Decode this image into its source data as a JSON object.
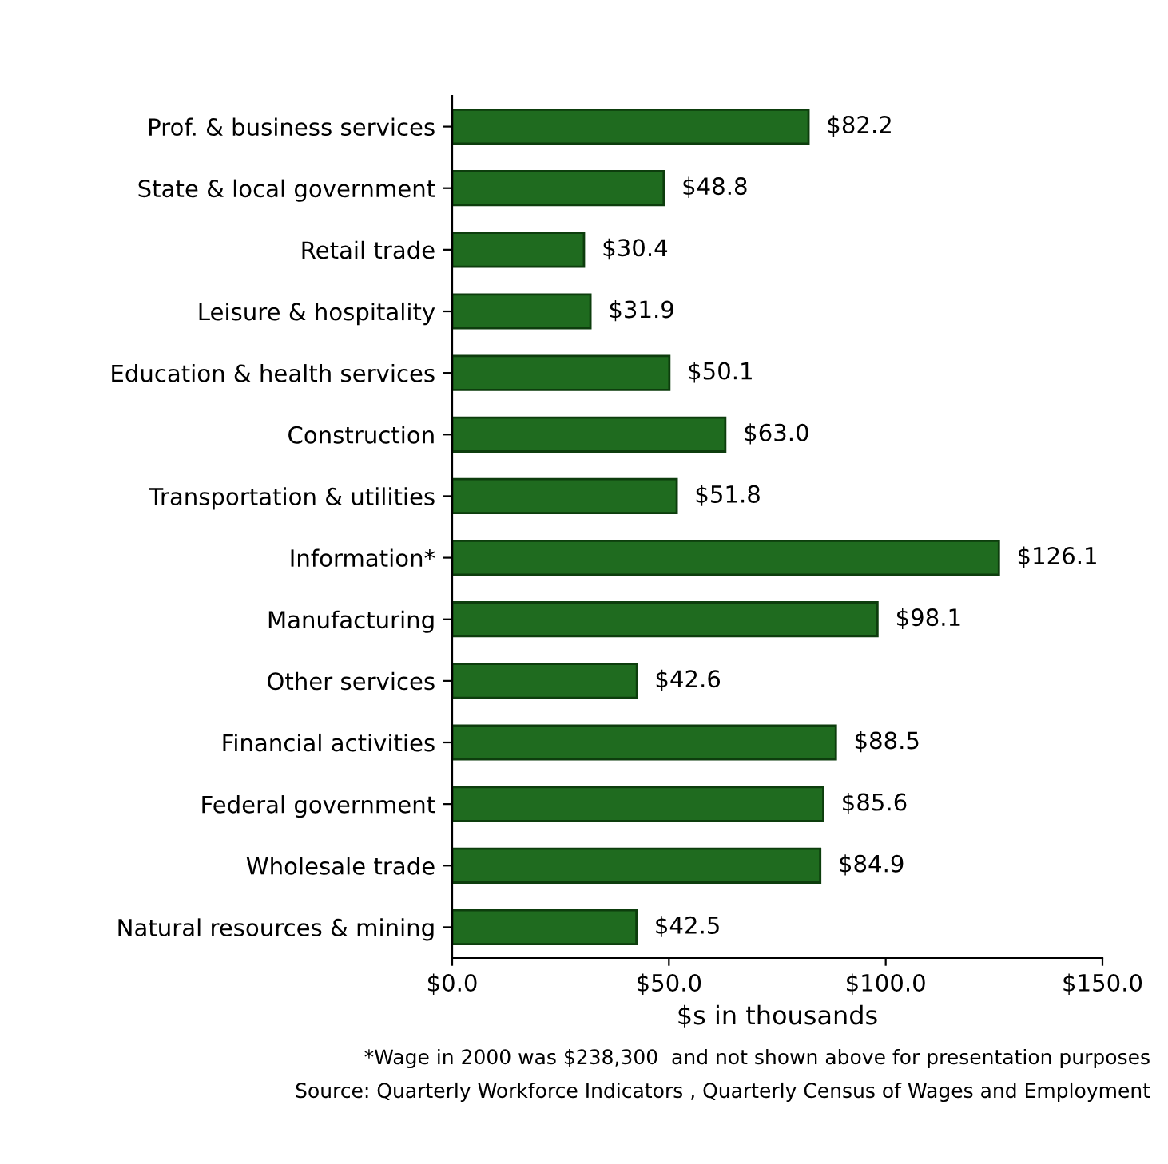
{
  "chart_data": {
    "type": "bar",
    "orientation": "horizontal",
    "xlabel": "$s in thousands",
    "categories": [
      "Prof. & business services",
      "State & local government",
      "Retail trade",
      "Leisure & hospitality",
      "Education & health services",
      "Construction",
      "Transportation & utilities",
      "Information*",
      "Manufacturing",
      "Other services",
      "Financial activities",
      "Federal government",
      "Wholesale trade",
      "Natural resources & mining"
    ],
    "values": [
      82.2,
      48.8,
      30.4,
      31.9,
      50.1,
      63.0,
      51.8,
      126.1,
      98.1,
      42.6,
      88.5,
      85.6,
      84.9,
      42.5
    ],
    "value_labels": [
      "$82.2",
      "$48.8",
      "$30.4",
      "$31.9",
      "$50.1",
      "$63.0",
      "$51.8",
      "$126.1",
      "$98.1",
      "$42.6",
      "$88.5",
      "$85.6",
      "$84.9",
      "$42.5"
    ],
    "color": "#1f6b1f",
    "xlim": [
      0,
      150
    ],
    "xticks": [
      {
        "value": 0,
        "label": "$0.0"
      },
      {
        "value": 50,
        "label": "$50.0"
      },
      {
        "value": 100,
        "label": "$100.0"
      },
      {
        "value": 150,
        "label": "$150.0"
      }
    ],
    "grid": false,
    "annotations": [
      "*Wage in 2000 was $238,300  and not shown above for presentation purposes",
      "Source: Quarterly Workforce Indicators , Quarterly Census of Wages and Employment"
    ]
  }
}
